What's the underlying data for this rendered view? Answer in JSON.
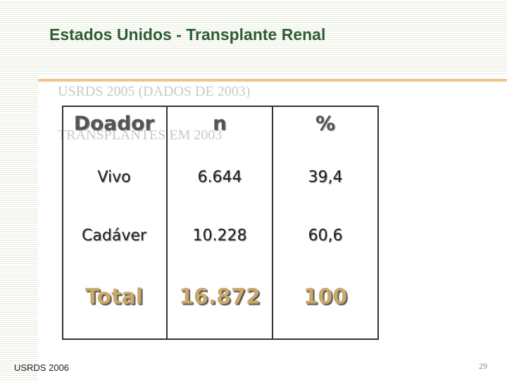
{
  "header": {
    "title": "Estados Unidos - Transplante Renal"
  },
  "background_text": [
    "USRDS 2005 (DADOS DE 2003)",
    "TRANSPLANTES EM 2003"
  ],
  "table": {
    "header": [
      "Doador",
      "n",
      "%"
    ],
    "rows": [
      [
        "Vivo",
        "6.644",
        "39,4"
      ],
      [
        "Cadáver",
        "10.228",
        "60,6"
      ],
      [
        "Total",
        "16.872",
        "100"
      ]
    ]
  },
  "footer": {
    "source": "USRDS 2006",
    "page_number": "29"
  }
}
